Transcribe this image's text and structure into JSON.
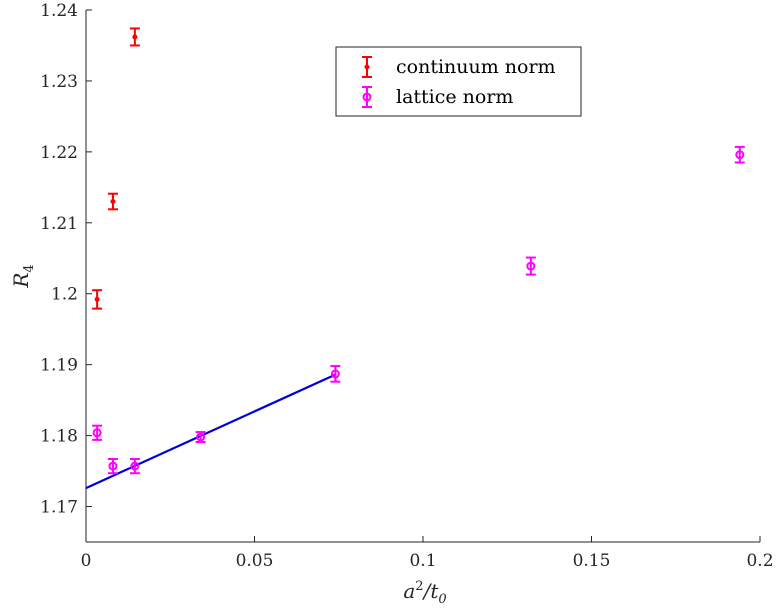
{
  "chart_data": {
    "type": "scatter",
    "xlabel_base": "a",
    "xlabel_sup": "2",
    "xlabel_mid": "/t",
    "xlabel_sub": "0",
    "ylabel_base": "R",
    "ylabel_sub": "4",
    "xlim": [
      0,
      0.2
    ],
    "ylim": [
      1.165,
      1.24
    ],
    "xticks": [
      "0",
      "0.05",
      "0.1",
      "0.15",
      "0.2"
    ],
    "xtick_values": [
      0,
      0.05,
      0.1,
      0.15,
      0.2
    ],
    "yticks": [
      "1.17",
      "1.18",
      "1.19",
      "1.2",
      "1.21",
      "1.22",
      "1.23",
      "1.24"
    ],
    "ytick_values": [
      1.17,
      1.18,
      1.19,
      1.2,
      1.21,
      1.22,
      1.23,
      1.24
    ],
    "grid": false,
    "legend_position": "top-center",
    "series": [
      {
        "name": "continuum norm",
        "color": "#ff0000",
        "marker": "dot",
        "points": [
          {
            "x": 0.0033,
            "y": 1.1992,
            "err": 0.0013
          },
          {
            "x": 0.008,
            "y": 1.213,
            "err": 0.0011
          },
          {
            "x": 0.0145,
            "y": 1.2362,
            "err": 0.0012
          }
        ]
      },
      {
        "name": "lattice norm",
        "color": "#ff00ff",
        "marker": "circle",
        "points": [
          {
            "x": 0.0033,
            "y": 1.1804,
            "err": 0.001
          },
          {
            "x": 0.008,
            "y": 1.1757,
            "err": 0.001
          },
          {
            "x": 0.0145,
            "y": 1.1757,
            "err": 0.001
          },
          {
            "x": 0.034,
            "y": 1.1798,
            "err": 0.0007
          },
          {
            "x": 0.074,
            "y": 1.1887,
            "err": 0.0011
          },
          {
            "x": 0.132,
            "y": 1.2039,
            "err": 0.0012
          },
          {
            "x": 0.194,
            "y": 1.2196,
            "err": 0.0011
          }
        ]
      }
    ],
    "fit_line": {
      "color": "#0000dd",
      "x": [
        0,
        0.074
      ],
      "y": [
        1.1726,
        1.1886
      ]
    }
  }
}
